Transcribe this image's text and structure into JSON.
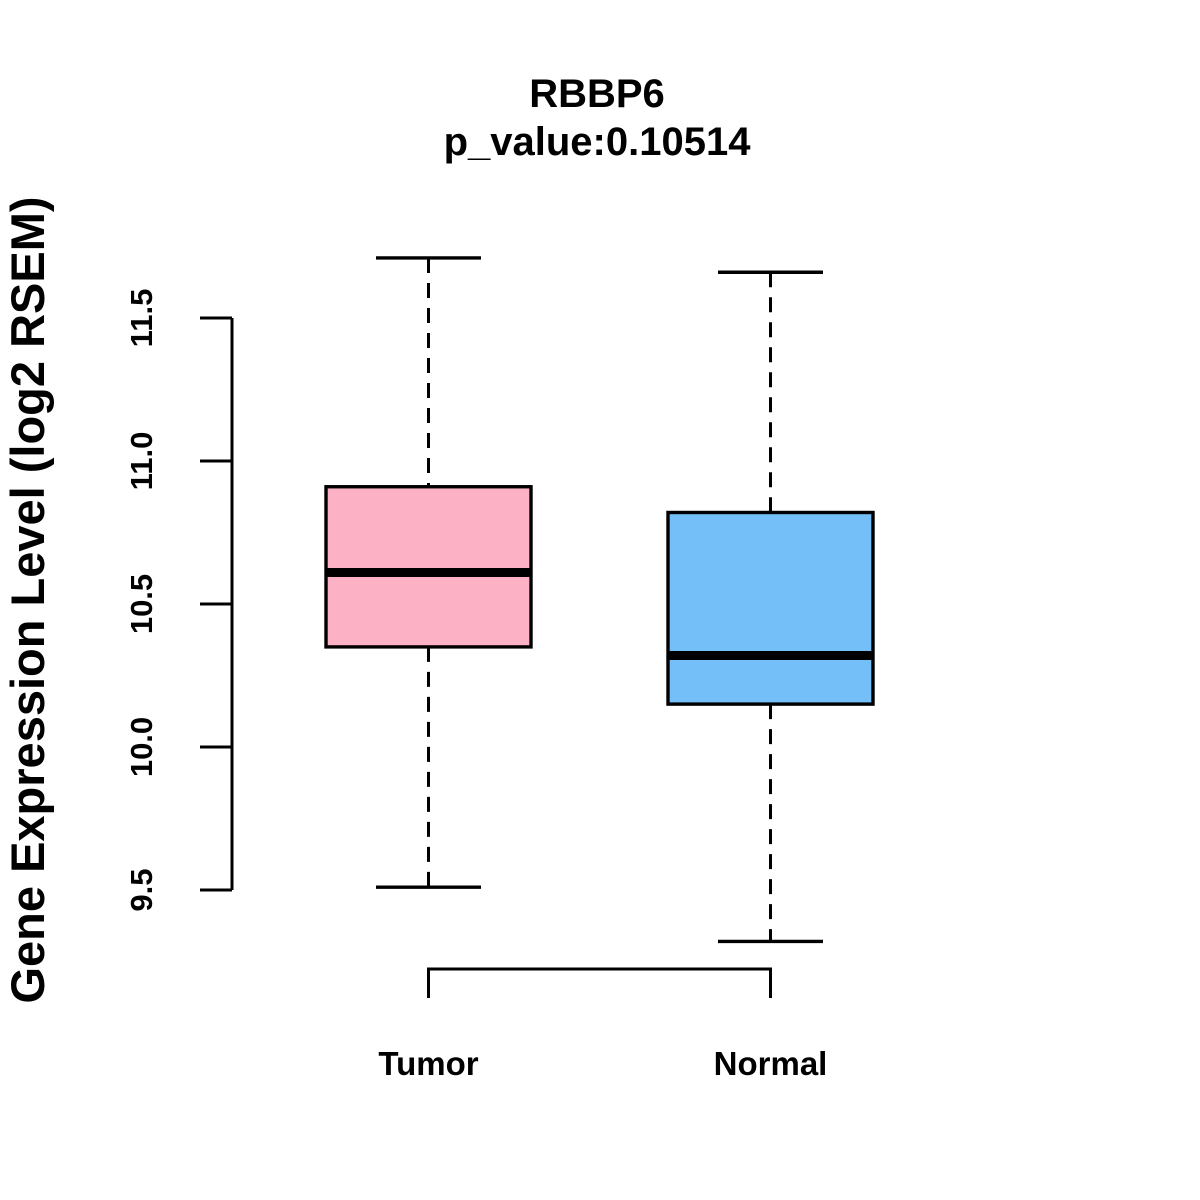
{
  "chart_data": {
    "type": "boxplot",
    "title": "RBBP6",
    "subtitle": "p_value:0.10514",
    "ylabel": "Gene Expression Level (log2 RSEM)",
    "xlabel": "",
    "categories": [
      "Tumor",
      "Normal"
    ],
    "axis": {
      "y_ticks": [
        "9.5",
        "10.0",
        "10.5",
        "11.0",
        "11.5"
      ],
      "y_tick_values": [
        9.5,
        10.0,
        10.5,
        11.0,
        11.5
      ],
      "y_range": [
        9.5,
        11.5
      ]
    },
    "series": [
      {
        "name": "Tumor",
        "fill_color": "#FDB1C4",
        "whisker_low": 9.51,
        "q1": 10.35,
        "median": 10.61,
        "q3": 10.91,
        "whisker_high": 11.71
      },
      {
        "name": "Normal",
        "fill_color": "#74BFF7",
        "whisker_low": 9.32,
        "q1": 10.15,
        "median": 10.32,
        "q3": 10.82,
        "whisker_high": 11.66
      }
    ],
    "legend": "none",
    "grid": false
  },
  "colors": {
    "stroke": "#000000",
    "text": "#000000",
    "background": "#FFFFFF"
  }
}
